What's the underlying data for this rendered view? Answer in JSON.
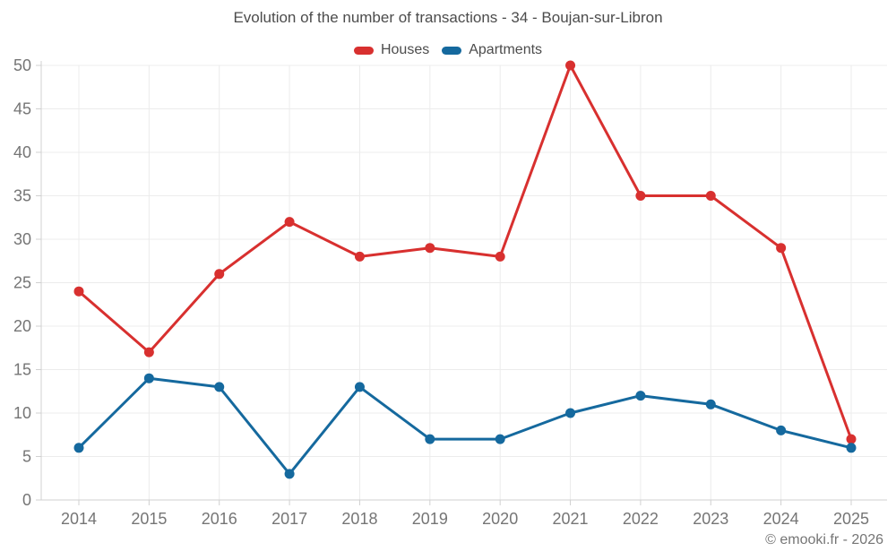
{
  "chart_data": {
    "type": "line",
    "title": "Evolution of the number of transactions - 34 - Boujan-sur-Libron",
    "x": [
      2014,
      2015,
      2016,
      2017,
      2018,
      2019,
      2020,
      2021,
      2022,
      2023,
      2024,
      2025
    ],
    "series": [
      {
        "name": "Houses",
        "color": "#d8302f",
        "values": [
          24,
          17,
          26,
          32,
          28,
          29,
          28,
          50,
          35,
          35,
          29,
          7
        ]
      },
      {
        "name": "Apartments",
        "color": "#15699e",
        "values": [
          6,
          14,
          13,
          3,
          13,
          7,
          7,
          10,
          12,
          11,
          8,
          6
        ]
      }
    ],
    "ylim": [
      0,
      50
    ],
    "yticks": [
      0,
      5,
      10,
      15,
      20,
      25,
      30,
      35,
      40,
      45,
      50
    ],
    "grid": true,
    "legend_position": "top"
  },
  "colors": {
    "grid": "#ececec",
    "axis": "#d0d0d0",
    "tick_label": "#757575",
    "title_text": "#4c4c4c"
  },
  "footer": {
    "copyright": "© emooki.fr - 2026"
  }
}
